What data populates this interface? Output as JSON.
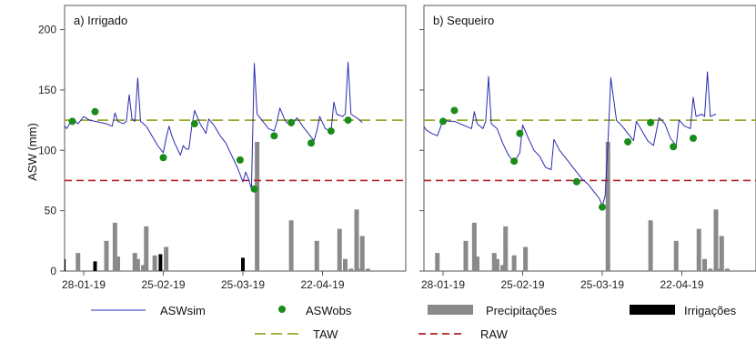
{
  "chart_data": {
    "type": "line",
    "ylabel": "ASW (mm)",
    "ylim": [
      0,
      220
    ],
    "yticks": [
      0,
      50,
      100,
      150,
      200
    ],
    "xticks": [
      "28-01-19",
      "25-02-19",
      "25-03-19",
      "22-04-19"
    ],
    "xtick_days": [
      0,
      28,
      56,
      84
    ],
    "x_unit": "days",
    "taw": 125,
    "raw": 75,
    "colors": {
      "sim": "#2b2bb0",
      "obs": "#1a8c1a",
      "precip": "#8a8a8a",
      "irrig": "#000000",
      "taw": "#9aa82c",
      "raw": "#b22222"
    },
    "legend": {
      "sim": "ASWsim",
      "obs": "ASWobs",
      "precip": "Precipitações",
      "irrig": "Irrigações",
      "taw": "TAW",
      "raw": "RAW"
    },
    "panels": [
      {
        "title": "a) Irrigado",
        "sim": [
          [
            -8,
            124
          ],
          [
            -6,
            118
          ],
          [
            -4,
            126
          ],
          [
            -2,
            122
          ],
          [
            0,
            128
          ],
          [
            2,
            125
          ],
          [
            4,
            124
          ],
          [
            6,
            123
          ],
          [
            8,
            122
          ],
          [
            10,
            120
          ],
          [
            11,
            131
          ],
          [
            12,
            124
          ],
          [
            14,
            122
          ],
          [
            15,
            124
          ],
          [
            16,
            146
          ],
          [
            17,
            126
          ],
          [
            18,
            124
          ],
          [
            19,
            160
          ],
          [
            20,
            124
          ],
          [
            22,
            120
          ],
          [
            24,
            112
          ],
          [
            26,
            104
          ],
          [
            28,
            98
          ],
          [
            29,
            110
          ],
          [
            30,
            120
          ],
          [
            31,
            112
          ],
          [
            32,
            106
          ],
          [
            34,
            96
          ],
          [
            35,
            104
          ],
          [
            36,
            101
          ],
          [
            37,
            101
          ],
          [
            38,
            120
          ],
          [
            39,
            133
          ],
          [
            41,
            122
          ],
          [
            43,
            114
          ],
          [
            44,
            126
          ],
          [
            46,
            120
          ],
          [
            48,
            112
          ],
          [
            50,
            106
          ],
          [
            52,
            96
          ],
          [
            54,
            86
          ],
          [
            55,
            80
          ],
          [
            56,
            74
          ],
          [
            57,
            82
          ],
          [
            58,
            76
          ],
          [
            59,
            68
          ],
          [
            60,
            172
          ],
          [
            61,
            130
          ],
          [
            63,
            124
          ],
          [
            65,
            118
          ],
          [
            67,
            116
          ],
          [
            68,
            124
          ],
          [
            69,
            135
          ],
          [
            71,
            124
          ],
          [
            73,
            120
          ],
          [
            75,
            127
          ],
          [
            77,
            120
          ],
          [
            79,
            114
          ],
          [
            81,
            108
          ],
          [
            82,
            116
          ],
          [
            83,
            128
          ],
          [
            85,
            118
          ],
          [
            87,
            116
          ],
          [
            88,
            140
          ],
          [
            89,
            130
          ],
          [
            91,
            128
          ],
          [
            92,
            130
          ],
          [
            93,
            173
          ],
          [
            94,
            130
          ],
          [
            96,
            127
          ],
          [
            98,
            123
          ]
        ],
        "obs": [
          [
            -4,
            124
          ],
          [
            4,
            132
          ],
          [
            28,
            94
          ],
          [
            39,
            122
          ],
          [
            55,
            92
          ],
          [
            60,
            68
          ],
          [
            67,
            112
          ],
          [
            73,
            123
          ],
          [
            80,
            106
          ],
          [
            87,
            116
          ],
          [
            93,
            125
          ]
        ],
        "precip": [
          [
            -2,
            15
          ],
          [
            8,
            25
          ],
          [
            11,
            40
          ],
          [
            12,
            12
          ],
          [
            18,
            15
          ],
          [
            19,
            10
          ],
          [
            21,
            5
          ],
          [
            22,
            37
          ],
          [
            25,
            13
          ],
          [
            29,
            20
          ],
          [
            61,
            107
          ],
          [
            73,
            42
          ],
          [
            82,
            25
          ],
          [
            90,
            35
          ],
          [
            92,
            10
          ],
          [
            94,
            2
          ],
          [
            96,
            51
          ],
          [
            97,
            2
          ],
          [
            98,
            29
          ],
          [
            100,
            2
          ]
        ],
        "irrig": [
          [
            -7,
            10
          ],
          [
            4,
            8
          ],
          [
            27,
            14
          ],
          [
            56,
            11
          ]
        ]
      },
      {
        "title": "b) Sequeiro",
        "sim": [
          [
            -8,
            124
          ],
          [
            -6,
            117
          ],
          [
            -4,
            114
          ],
          [
            -2,
            112
          ],
          [
            0,
            125
          ],
          [
            2,
            124
          ],
          [
            4,
            124
          ],
          [
            6,
            122
          ],
          [
            8,
            120
          ],
          [
            10,
            118
          ],
          [
            11,
            132
          ],
          [
            12,
            122
          ],
          [
            14,
            118
          ],
          [
            15,
            124
          ],
          [
            16,
            161
          ],
          [
            17,
            122
          ],
          [
            19,
            118
          ],
          [
            21,
            106
          ],
          [
            23,
            96
          ],
          [
            25,
            90
          ],
          [
            27,
            98
          ],
          [
            28,
            121
          ],
          [
            30,
            110
          ],
          [
            32,
            100
          ],
          [
            34,
            95
          ],
          [
            36,
            86
          ],
          [
            38,
            84
          ],
          [
            39,
            109
          ],
          [
            41,
            100
          ],
          [
            43,
            94
          ],
          [
            45,
            88
          ],
          [
            47,
            82
          ],
          [
            49,
            76
          ],
          [
            51,
            72
          ],
          [
            53,
            66
          ],
          [
            55,
            60
          ],
          [
            56,
            54
          ],
          [
            57,
            62
          ],
          [
            58,
            107
          ],
          [
            59,
            160
          ],
          [
            61,
            125
          ],
          [
            63,
            120
          ],
          [
            65,
            114
          ],
          [
            67,
            108
          ],
          [
            68,
            124
          ],
          [
            70,
            116
          ],
          [
            72,
            108
          ],
          [
            74,
            104
          ],
          [
            76,
            127
          ],
          [
            78,
            122
          ],
          [
            80,
            110
          ],
          [
            82,
            104
          ],
          [
            83,
            125
          ],
          [
            85,
            120
          ],
          [
            87,
            118
          ],
          [
            88,
            144
          ],
          [
            89,
            128
          ],
          [
            91,
            130
          ],
          [
            92,
            128
          ],
          [
            93,
            165
          ],
          [
            94,
            128
          ],
          [
            96,
            130
          ]
        ],
        "obs": [
          [
            0,
            124
          ],
          [
            4,
            133
          ],
          [
            25,
            91
          ],
          [
            27,
            114
          ],
          [
            47,
            74
          ],
          [
            56,
            53
          ],
          [
            65,
            107
          ],
          [
            73,
            123
          ],
          [
            81,
            103
          ],
          [
            88,
            110
          ]
        ],
        "precip": [
          [
            -2,
            15
          ],
          [
            8,
            25
          ],
          [
            11,
            40
          ],
          [
            12,
            12
          ],
          [
            18,
            15
          ],
          [
            19,
            10
          ],
          [
            21,
            5
          ],
          [
            22,
            37
          ],
          [
            25,
            13
          ],
          [
            29,
            20
          ],
          [
            58,
            107
          ],
          [
            73,
            42
          ],
          [
            82,
            25
          ],
          [
            90,
            35
          ],
          [
            92,
            10
          ],
          [
            94,
            2
          ],
          [
            96,
            51
          ],
          [
            97,
            2
          ],
          [
            98,
            29
          ],
          [
            100,
            2
          ]
        ],
        "irrig": []
      }
    ]
  }
}
